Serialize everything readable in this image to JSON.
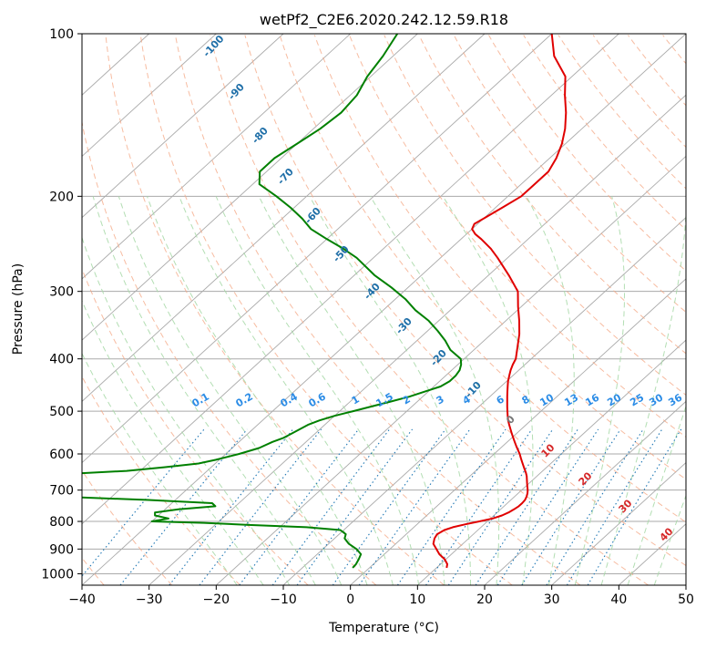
{
  "chart_data": {
    "type": "line",
    "subtype": "skew-t log-p diagram",
    "title": "wetPf2_C2E6.2020.242.12.59.R18",
    "xlabel": "Temperature (°C)",
    "ylabel": "Pressure (hPa)",
    "xlim": [
      -40,
      50
    ],
    "ylim": [
      1050,
      100
    ],
    "y_scale": "log",
    "grid": true,
    "x_ticks": [
      "−40",
      "−30",
      "−20",
      "−10",
      "0",
      "10",
      "20",
      "30",
      "40",
      "50"
    ],
    "y_ticks": [
      "100",
      "200",
      "300",
      "400",
      "500",
      "600",
      "700",
      "800",
      "900",
      "1000"
    ],
    "y_tick_values": [
      100,
      200,
      300,
      400,
      500,
      600,
      700,
      800,
      900,
      1000
    ],
    "colors": {
      "temperature": "#e00000",
      "dewpoint": "#008000",
      "isotherm": "#aaaaaa",
      "dry_adiabat": "#f4a582",
      "moist_adiabat": "#a6d8a6",
      "mixing_ratio": "#1f77b4",
      "isotherm_label": "#1f6fa8",
      "mixing_label": "#2b8ce6",
      "adiabat_label": "#d62728"
    },
    "isotherm_labels": [
      {
        "text": "-100",
        "t": -100
      },
      {
        "text": "-90",
        "t": -90
      },
      {
        "text": "-80",
        "t": -80
      },
      {
        "text": "-70",
        "t": -70
      },
      {
        "text": "-60",
        "t": -60
      },
      {
        "text": "-50",
        "t": -50
      },
      {
        "text": "-40",
        "t": -40
      },
      {
        "text": "-30",
        "t": -30
      },
      {
        "text": "-20",
        "t": -20
      },
      {
        "text": "-10",
        "t": -10
      }
    ],
    "mixing_ratio_labels": [
      "0.1",
      "0.2",
      "0.4",
      "0.6",
      "1",
      "1.5",
      "2",
      "3",
      "4",
      "6",
      "8",
      "10",
      "13",
      "16",
      "20",
      "25",
      "30",
      "36"
    ],
    "mixing_ratio_values": [
      0.1,
      0.2,
      0.4,
      0.6,
      1,
      1.5,
      2,
      3,
      4,
      6,
      8,
      10,
      13,
      16,
      20,
      25,
      30,
      36
    ],
    "moist_adiabat_labels": [
      {
        "text": "0",
        "t": 0
      },
      {
        "text": "10",
        "t": 10
      },
      {
        "text": "20",
        "t": 20
      },
      {
        "text": "30",
        "t": 30
      },
      {
        "text": "40",
        "t": 40
      }
    ],
    "series": [
      {
        "key": "temperature",
        "p": [
          975,
          960,
          940,
          920,
          900,
          880,
          860,
          845,
          830,
          820,
          810,
          800,
          790,
          780,
          770,
          760,
          750,
          740,
          730,
          720,
          710,
          700,
          690,
          680,
          670,
          660,
          650,
          640,
          630,
          620,
          610,
          600,
          590,
          580,
          570,
          560,
          550,
          540,
          530,
          520,
          510,
          500,
          490,
          480,
          470,
          460,
          450,
          440,
          430,
          420,
          410,
          400,
          380,
          360,
          340,
          320,
          300,
          280,
          260,
          250,
          240,
          235,
          230,
          225,
          220,
          210,
          200,
          190,
          180,
          170,
          160,
          150,
          140,
          130,
          120,
          110,
          100
        ],
        "t": [
          11.5,
          11.0,
          9.8,
          8.2,
          6.9,
          5.6,
          4.9,
          4.6,
          5.0,
          5.8,
          7.2,
          8.8,
          10.3,
          11.2,
          11.7,
          12.0,
          12.2,
          12.2,
          12.1,
          11.8,
          11.4,
          10.9,
          10.3,
          9.7,
          9.1,
          8.5,
          7.8,
          7.0,
          6.2,
          5.4,
          4.6,
          3.8,
          2.9,
          2.0,
          1.1,
          0.2,
          -0.7,
          -1.6,
          -2.5,
          -3.4,
          -4.2,
          -5.0,
          -5.8,
          -6.6,
          -7.4,
          -8.2,
          -9.0,
          -9.8,
          -10.5,
          -11.2,
          -11.8,
          -12.3,
          -14.0,
          -15.8,
          -18.0,
          -20.5,
          -23.0,
          -27.0,
          -31.5,
          -34.0,
          -37.0,
          -38.7,
          -40.0,
          -40.5,
          -40.0,
          -39.0,
          -38.0,
          -38.0,
          -38.0,
          -39.0,
          -40.5,
          -42.5,
          -45.0,
          -48.0,
          -51.0,
          -56.0,
          -60.0
        ]
      },
      {
        "key": "dewpoint",
        "p": [
          975,
          960,
          940,
          920,
          900,
          880,
          860,
          845,
          830,
          820,
          812,
          805,
          800,
          790,
          780,
          770,
          760,
          750,
          740,
          730,
          722,
          715,
          705,
          695,
          685,
          675,
          665,
          655,
          645,
          635,
          625,
          615,
          600,
          585,
          570,
          560,
          550,
          540,
          530,
          520,
          510,
          500,
          490,
          480,
          470,
          460,
          450,
          440,
          430,
          420,
          410,
          400,
          385,
          370,
          355,
          340,
          325,
          310,
          295,
          280,
          260,
          250,
          240,
          230,
          220,
          210,
          200,
          190,
          180,
          170,
          160,
          150,
          140,
          130,
          120,
          110,
          100
        ],
        "t": [
          -2.5,
          -2.6,
          -3.0,
          -3.5,
          -5.0,
          -7.0,
          -8.5,
          -9.0,
          -10.5,
          -16.0,
          -25.0,
          -32.0,
          -40.0,
          -38.0,
          -40.5,
          -41.0,
          -38.0,
          -33.0,
          -34.0,
          -44.0,
          -55.0,
          -70.0,
          -80.0,
          -92.0,
          -100.0,
          -90.0,
          -75.0,
          -62.0,
          -52.0,
          -47.0,
          -42.5,
          -40.5,
          -38.0,
          -36.0,
          -35.0,
          -34.0,
          -33.5,
          -33.0,
          -32.5,
          -31.5,
          -30.0,
          -28.0,
          -26.0,
          -24.0,
          -22.0,
          -20.5,
          -19.0,
          -18.5,
          -18.5,
          -18.8,
          -19.5,
          -20.5,
          -23.5,
          -25.8,
          -28.5,
          -31.5,
          -35.2,
          -38.5,
          -42.5,
          -47.0,
          -52.5,
          -56.0,
          -60.0,
          -64.0,
          -67.0,
          -70.5,
          -74.5,
          -79.0,
          -81.0,
          -81.0,
          -80.0,
          -79.0,
          -78.5,
          -79.0,
          -80.5,
          -81.5,
          -83.0
        ]
      }
    ]
  }
}
